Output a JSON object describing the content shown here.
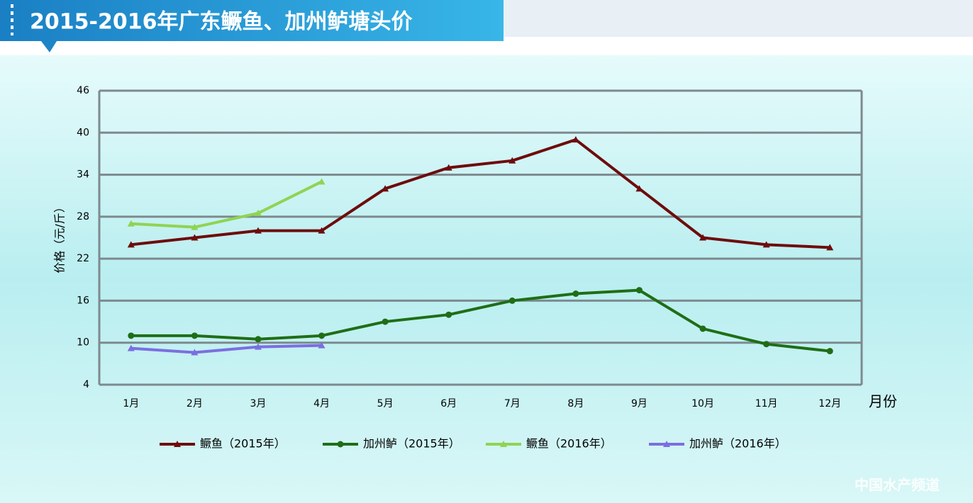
{
  "chart_data": {
    "type": "line",
    "title": "2015-2016年广东鳜鱼、加州鲈塘头价",
    "y_label": "价格（元/斤）",
    "x_label": "月份",
    "watermark": "中国水产频道",
    "categories": [
      "1月",
      "2月",
      "3月",
      "4月",
      "5月",
      "6月",
      "7月",
      "8月",
      "9月",
      "10月",
      "11月",
      "12月"
    ],
    "series": [
      {
        "name": "鳜鱼（2015年）",
        "color": "#6e0c0c",
        "marker": "triangle",
        "values": [
          24,
          25,
          26,
          26,
          32,
          35,
          36,
          39,
          32,
          25,
          24,
          23.6
        ]
      },
      {
        "name": "加州鲈（2015年）",
        "color": "#1f6e16",
        "marker": "circle",
        "values": [
          11,
          11,
          10.5,
          11,
          13,
          14,
          16,
          17,
          17.5,
          12,
          9.8,
          8.8
        ]
      },
      {
        "name": "鳜鱼（2016年）",
        "color": "#8fd452",
        "marker": "triangle",
        "values": [
          27,
          26.5,
          28.5,
          33,
          null,
          null,
          null,
          null,
          null,
          null,
          null,
          null
        ]
      },
      {
        "name": "加州鲈（2016年）",
        "color": "#7b6fe0",
        "marker": "triangle",
        "values": [
          9.2,
          8.6,
          9.4,
          9.6,
          null,
          null,
          null,
          null,
          null,
          null,
          null,
          null
        ]
      }
    ],
    "ylim": [
      4,
      46
    ],
    "yticks": [
      4,
      10,
      16,
      22,
      28,
      34,
      40,
      46
    ],
    "grid": true
  }
}
